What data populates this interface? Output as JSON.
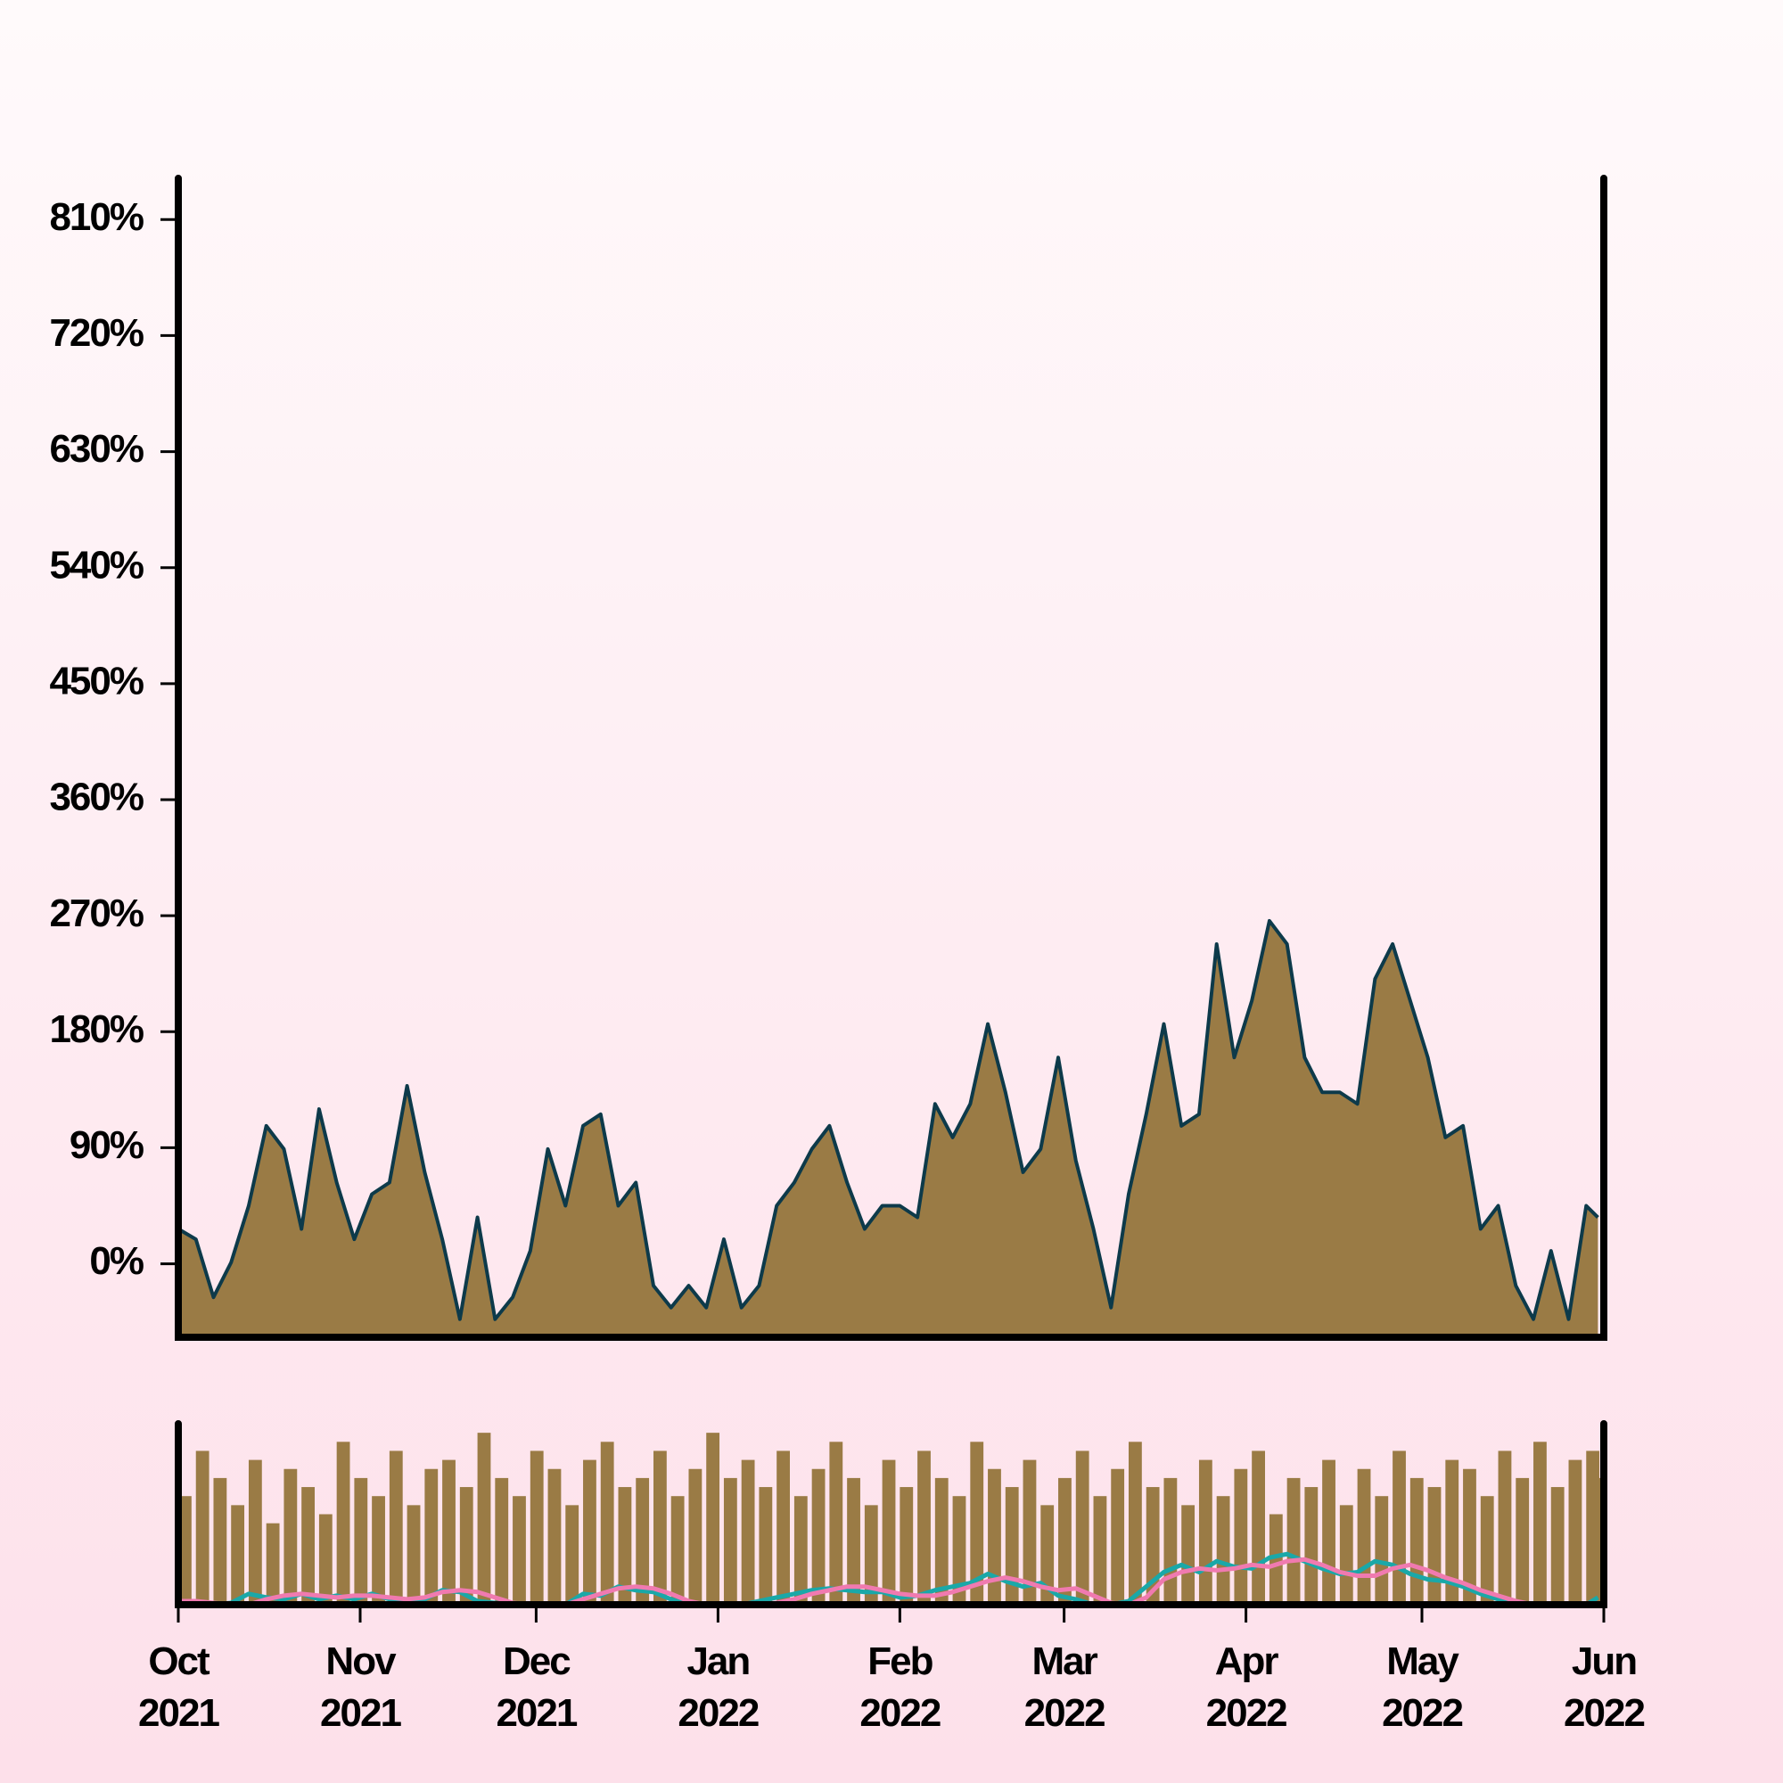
{
  "chart_data": [
    {
      "type": "area",
      "x": [
        0,
        3,
        6,
        9,
        12,
        15,
        18,
        21,
        24,
        27,
        30,
        33,
        36,
        39,
        42,
        45,
        48,
        51,
        54,
        57,
        60,
        63,
        66,
        69,
        72,
        75,
        78,
        81,
        84,
        87,
        90,
        93,
        96,
        99,
        102,
        105,
        108,
        111,
        114,
        117,
        120,
        123,
        126,
        129,
        132,
        135,
        138,
        141,
        144,
        147,
        150,
        153,
        156,
        159,
        162,
        165,
        168,
        171,
        174,
        177,
        180,
        183,
        186,
        189,
        192,
        195,
        198,
        201,
        204,
        207,
        210,
        213,
        216,
        219,
        222,
        225,
        228,
        231,
        234,
        237,
        240,
        242
      ],
      "xlim": [
        0,
        243
      ],
      "series": [
        {
          "color": "#0d3a4a",
          "fill": "#9a7b45",
          "values": [
            27,
            19,
            -26,
            1,
            45,
            107,
            89,
            27,
            120,
            63,
            19,
            54,
            63,
            138,
            71,
            19,
            -43,
            36,
            -43,
            -26,
            10,
            89,
            45,
            107,
            116,
            45,
            63,
            -17,
            -34,
            -17,
            -34,
            19,
            -34,
            -17,
            45,
            63,
            89,
            107,
            63,
            27,
            45,
            45,
            36,
            124,
            98,
            124,
            186,
            133,
            71,
            89,
            160,
            80,
            27,
            -34,
            54,
            116,
            186,
            107,
            116,
            248,
            160,
            204,
            266,
            248,
            160,
            133,
            133,
            124,
            221,
            248,
            204,
            160,
            98,
            107,
            27,
            45,
            -17,
            -43,
            10,
            -43,
            45,
            36
          ]
        }
      ],
      "ylim": [
        -57,
        842
      ],
      "yticks": [
        {
          "value": 0,
          "label": "0%"
        },
        {
          "value": 90,
          "label": "90%"
        },
        {
          "value": 180,
          "label": "180%"
        },
        {
          "value": 270,
          "label": "270%"
        },
        {
          "value": 360,
          "label": "360%"
        },
        {
          "value": 450,
          "label": "450%"
        },
        {
          "value": 540,
          "label": "540%"
        },
        {
          "value": 630,
          "label": "630%"
        },
        {
          "value": 720,
          "label": "720%"
        },
        {
          "value": 810,
          "label": "810%"
        }
      ]
    },
    {
      "type": "bar",
      "x": [
        0,
        3,
        6,
        9,
        12,
        15,
        18,
        21,
        24,
        27,
        30,
        33,
        36,
        39,
        42,
        45,
        48,
        51,
        54,
        57,
        60,
        63,
        66,
        69,
        72,
        75,
        78,
        81,
        84,
        87,
        90,
        93,
        96,
        99,
        102,
        105,
        108,
        111,
        114,
        117,
        120,
        123,
        126,
        129,
        132,
        135,
        138,
        141,
        144,
        147,
        150,
        153,
        156,
        159,
        162,
        165,
        168,
        171,
        174,
        177,
        180,
        183,
        186,
        189,
        192,
        195,
        198,
        201,
        204,
        207,
        210,
        213,
        216,
        219,
        222,
        225,
        228,
        231,
        234,
        237,
        240,
        242
      ],
      "xlim": [
        0,
        243
      ],
      "xticks": [
        {
          "value": 0,
          "label": "Oct 2021"
        },
        {
          "value": 31,
          "label": "Nov 2021"
        },
        {
          "value": 61,
          "label": "Dec 2021"
        },
        {
          "value": 92,
          "label": "Jan 2022"
        },
        {
          "value": 123,
          "label": "Feb 2022"
        },
        {
          "value": 151,
          "label": "Mar 2022"
        },
        {
          "value": 182,
          "label": "Apr 2022"
        },
        {
          "value": 212,
          "label": "May 2022"
        },
        {
          "value": 243,
          "label": "Jun 2022"
        }
      ],
      "ylim": [
        0,
        100
      ],
      "series": [
        {
          "type": "bar",
          "color": "#9a7b45",
          "values": [
            60,
            85,
            70,
            55,
            80,
            45,
            75,
            65,
            50,
            90,
            70,
            60,
            85,
            55,
            75,
            80,
            65,
            95,
            70,
            60,
            85,
            75,
            55,
            80,
            90,
            65,
            70,
            85,
            60,
            75,
            95,
            70,
            80,
            65,
            85,
            60,
            75,
            90,
            70,
            55,
            80,
            65,
            85,
            70,
            60,
            90,
            75,
            65,
            80,
            55,
            70,
            85,
            60,
            75,
            90,
            65,
            70,
            55,
            80,
            60,
            75,
            85,
            50,
            70,
            65,
            80,
            55,
            75,
            60,
            85,
            70,
            65,
            80,
            75,
            60,
            85,
            70,
            90,
            65,
            80,
            85,
            70
          ]
        },
        {
          "type": "line",
          "color": "#1aa8a8",
          "values": [
            1,
            0,
            0,
            1,
            6,
            4,
            3,
            6,
            3,
            5,
            3,
            6,
            3,
            2,
            3,
            8,
            7,
            2,
            1,
            0,
            0,
            0,
            0,
            6,
            5,
            10,
            8,
            7,
            3,
            0,
            0,
            0,
            0,
            2,
            4,
            6,
            8,
            9,
            8,
            7,
            7,
            4,
            5,
            8,
            10,
            12,
            17,
            13,
            10,
            12,
            5,
            3,
            0,
            0,
            2,
            10,
            18,
            22,
            18,
            24,
            21,
            20,
            26,
            28,
            24,
            20,
            17,
            18,
            24,
            22,
            17,
            14,
            13,
            10,
            6,
            3,
            0,
            0,
            0,
            0,
            0,
            4
          ]
        },
        {
          "type": "line",
          "color": "#f07ab0",
          "values": [
            2,
            2,
            1,
            0,
            0,
            3,
            5,
            6,
            5,
            4,
            5,
            5,
            4,
            3,
            4,
            7,
            8,
            7,
            4,
            1,
            0,
            0,
            0,
            3,
            6,
            9,
            10,
            9,
            6,
            2,
            0,
            0,
            0,
            0,
            1,
            3,
            6,
            8,
            10,
            10,
            8,
            6,
            5,
            5,
            7,
            10,
            13,
            15,
            13,
            10,
            8,
            9,
            5,
            1,
            0,
            4,
            14,
            18,
            20,
            19,
            20,
            22,
            21,
            24,
            25,
            22,
            18,
            16,
            16,
            20,
            22,
            19,
            15,
            12,
            8,
            5,
            2,
            0,
            0,
            0,
            0,
            0
          ]
        }
      ]
    }
  ]
}
